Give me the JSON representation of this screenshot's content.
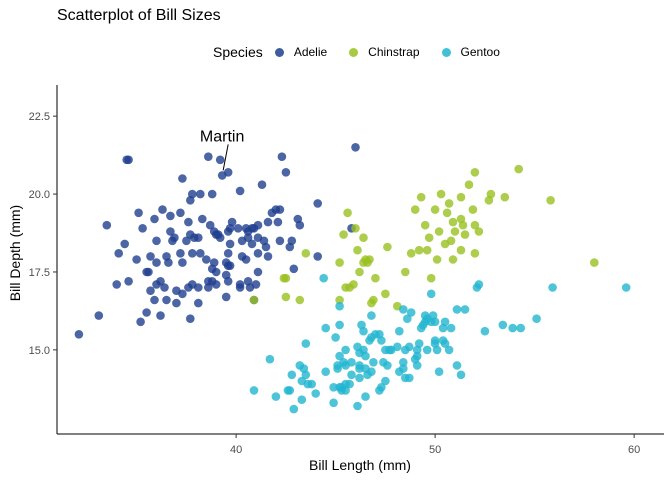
{
  "chart_data": {
    "type": "scatter",
    "title": "Scatterplot of Bill Sizes",
    "xlabel": "Bill Length (mm)",
    "ylabel": "Bill Depth (mm)",
    "xlim": [
      31.0,
      61.5
    ],
    "ylim": [
      12.3,
      23.5
    ],
    "xticks": [
      40,
      50,
      60
    ],
    "yticks": [
      15.0,
      17.5,
      20.0,
      22.5
    ],
    "ytick_labels": [
      "15.0",
      "17.5",
      "20.0",
      "22.5"
    ],
    "legend_title": "Species",
    "legend_position": "top",
    "annotation": {
      "text": "Martin",
      "x": 39.5,
      "y": 20.6
    },
    "series": [
      {
        "name": "Adelie",
        "color": "#1f3f8f",
        "points": [
          [
            32.1,
            15.5
          ],
          [
            33.1,
            16.1
          ],
          [
            33.5,
            19.0
          ],
          [
            34.0,
            17.1
          ],
          [
            34.1,
            18.1
          ],
          [
            34.4,
            18.4
          ],
          [
            34.5,
            21.1
          ],
          [
            34.6,
            17.2
          ],
          [
            34.6,
            21.1
          ],
          [
            35.0,
            17.9
          ],
          [
            35.1,
            19.4
          ],
          [
            35.2,
            15.9
          ],
          [
            35.3,
            18.9
          ],
          [
            35.5,
            16.2
          ],
          [
            35.5,
            17.5
          ],
          [
            35.6,
            17.5
          ],
          [
            35.7,
            16.9
          ],
          [
            35.7,
            18.0
          ],
          [
            35.9,
            16.6
          ],
          [
            35.9,
            19.2
          ],
          [
            36.0,
            17.1
          ],
          [
            36.0,
            17.8
          ],
          [
            36.0,
            18.5
          ],
          [
            36.2,
            16.1
          ],
          [
            36.2,
            17.2
          ],
          [
            36.3,
            19.5
          ],
          [
            36.4,
            17.0
          ],
          [
            36.5,
            16.6
          ],
          [
            36.5,
            18.0
          ],
          [
            36.6,
            17.8
          ],
          [
            36.7,
            18.8
          ],
          [
            36.7,
            19.3
          ],
          [
            36.8,
            18.5
          ],
          [
            36.9,
            18.6
          ],
          [
            37.0,
            16.5
          ],
          [
            37.0,
            16.9
          ],
          [
            37.2,
            18.1
          ],
          [
            37.2,
            19.4
          ],
          [
            37.3,
            16.8
          ],
          [
            37.3,
            17.8
          ],
          [
            37.3,
            20.5
          ],
          [
            37.5,
            18.5
          ],
          [
            37.6,
            17.0
          ],
          [
            37.6,
            19.1
          ],
          [
            37.7,
            16.0
          ],
          [
            37.7,
            18.7
          ],
          [
            37.7,
            19.8
          ],
          [
            37.8,
            17.1
          ],
          [
            37.8,
            18.1
          ],
          [
            37.8,
            20.0
          ],
          [
            37.9,
            18.6
          ],
          [
            38.1,
            16.5
          ],
          [
            38.1,
            17.0
          ],
          [
            38.1,
            18.6
          ],
          [
            38.2,
            18.1
          ],
          [
            38.2,
            20.0
          ],
          [
            38.3,
            19.2
          ],
          [
            38.5,
            17.9
          ],
          [
            38.6,
            17.0
          ],
          [
            38.6,
            17.2
          ],
          [
            38.6,
            21.2
          ],
          [
            38.7,
            19.0
          ],
          [
            38.8,
            17.2
          ],
          [
            38.8,
            17.6
          ],
          [
            38.8,
            20.0
          ],
          [
            38.9,
            17.8
          ],
          [
            38.9,
            18.8
          ],
          [
            39.0,
            17.1
          ],
          [
            39.0,
            17.5
          ],
          [
            39.0,
            18.7
          ],
          [
            39.1,
            18.7
          ],
          [
            39.2,
            18.6
          ],
          [
            39.2,
            21.1
          ],
          [
            39.3,
            20.6
          ],
          [
            39.5,
            16.7
          ],
          [
            39.5,
            17.4
          ],
          [
            39.5,
            17.8
          ],
          [
            39.6,
            17.2
          ],
          [
            39.6,
            17.7
          ],
          [
            39.6,
            18.1
          ],
          [
            39.6,
            18.8
          ],
          [
            39.6,
            20.7
          ],
          [
            39.7,
            17.7
          ],
          [
            39.7,
            18.4
          ],
          [
            39.7,
            18.9
          ],
          [
            39.8,
            19.1
          ],
          [
            40.1,
            18.9
          ],
          [
            40.2,
            17.0
          ],
          [
            40.2,
            17.1
          ],
          [
            40.2,
            20.1
          ],
          [
            40.3,
            18.0
          ],
          [
            40.3,
            18.5
          ],
          [
            40.5,
            17.9
          ],
          [
            40.5,
            18.9
          ],
          [
            40.6,
            17.2
          ],
          [
            40.6,
            18.6
          ],
          [
            40.6,
            18.8
          ],
          [
            40.7,
            17.0
          ],
          [
            40.8,
            18.4
          ],
          [
            40.8,
            18.9
          ],
          [
            40.9,
            16.6
          ],
          [
            40.9,
            18.9
          ],
          [
            41.0,
            17.1
          ],
          [
            41.1,
            17.5
          ],
          [
            41.1,
            18.1
          ],
          [
            41.1,
            18.6
          ],
          [
            41.1,
            19.0
          ],
          [
            41.3,
            20.3
          ],
          [
            41.4,
            18.5
          ],
          [
            41.5,
            18.3
          ],
          [
            41.6,
            18.0
          ],
          [
            41.6,
            19.1
          ],
          [
            41.8,
            19.4
          ],
          [
            42.0,
            19.5
          ],
          [
            42.1,
            19.1
          ],
          [
            42.2,
            18.5
          ],
          [
            42.2,
            19.5
          ],
          [
            42.3,
            21.2
          ],
          [
            42.5,
            20.7
          ],
          [
            42.7,
            18.3
          ],
          [
            42.8,
            18.5
          ],
          [
            42.9,
            17.6
          ],
          [
            43.1,
            19.2
          ],
          [
            43.2,
            19.0
          ],
          [
            44.1,
            18.0
          ],
          [
            44.1,
            19.7
          ],
          [
            45.8,
            18.9
          ],
          [
            46.0,
            21.5
          ]
        ]
      },
      {
        "name": "Chinstrap",
        "color": "#99c11f",
        "points": [
          [
            40.9,
            16.6
          ],
          [
            42.4,
            17.3
          ],
          [
            42.5,
            16.7
          ],
          [
            42.5,
            17.3
          ],
          [
            43.2,
            16.6
          ],
          [
            43.5,
            18.1
          ],
          [
            45.2,
            16.6
          ],
          [
            45.2,
            17.8
          ],
          [
            45.4,
            18.7
          ],
          [
            45.5,
            17.0
          ],
          [
            45.6,
            19.4
          ],
          [
            45.7,
            17.0
          ],
          [
            45.9,
            17.1
          ],
          [
            46.0,
            18.9
          ],
          [
            46.1,
            18.2
          ],
          [
            46.2,
            17.5
          ],
          [
            46.4,
            17.8
          ],
          [
            46.4,
            18.6
          ],
          [
            46.5,
            17.9
          ],
          [
            46.6,
            17.8
          ],
          [
            46.7,
            17.9
          ],
          [
            46.8,
            16.5
          ],
          [
            46.9,
            16.6
          ],
          [
            47.0,
            17.3
          ],
          [
            47.5,
            16.8
          ],
          [
            47.6,
            18.3
          ],
          [
            48.1,
            16.4
          ],
          [
            48.5,
            17.5
          ],
          [
            48.8,
            18.1
          ],
          [
            49.0,
            19.5
          ],
          [
            49.2,
            18.2
          ],
          [
            49.3,
            19.9
          ],
          [
            49.5,
            19.0
          ],
          [
            49.6,
            18.2
          ],
          [
            49.7,
            18.6
          ],
          [
            49.8,
            17.3
          ],
          [
            50.0,
            19.5
          ],
          [
            50.1,
            17.9
          ],
          [
            50.2,
            18.8
          ],
          [
            50.3,
            20.0
          ],
          [
            50.5,
            18.4
          ],
          [
            50.6,
            19.4
          ],
          [
            50.7,
            19.7
          ],
          [
            50.8,
            18.5
          ],
          [
            50.9,
            17.9
          ],
          [
            50.9,
            19.1
          ],
          [
            51.0,
            18.8
          ],
          [
            51.3,
            18.2
          ],
          [
            51.3,
            19.2
          ],
          [
            51.3,
            19.9
          ],
          [
            51.4,
            19.0
          ],
          [
            51.5,
            18.7
          ],
          [
            51.7,
            20.3
          ],
          [
            51.9,
            19.5
          ],
          [
            52.0,
            18.1
          ],
          [
            52.0,
            19.0
          ],
          [
            52.0,
            20.7
          ],
          [
            52.2,
            18.8
          ],
          [
            52.7,
            19.8
          ],
          [
            52.8,
            20.0
          ],
          [
            53.5,
            19.9
          ],
          [
            54.2,
            20.8
          ],
          [
            55.8,
            19.8
          ],
          [
            58.0,
            17.8
          ]
        ]
      },
      {
        "name": "Gentoo",
        "color": "#22b5cf",
        "points": [
          [
            40.9,
            13.7
          ],
          [
            41.7,
            14.7
          ],
          [
            42.0,
            13.5
          ],
          [
            42.6,
            13.7
          ],
          [
            42.7,
            13.7
          ],
          [
            42.8,
            14.2
          ],
          [
            42.9,
            13.1
          ],
          [
            43.2,
            14.5
          ],
          [
            43.3,
            13.4
          ],
          [
            43.3,
            14.0
          ],
          [
            43.4,
            14.4
          ],
          [
            43.5,
            14.2
          ],
          [
            43.5,
            15.2
          ],
          [
            43.6,
            13.9
          ],
          [
            43.8,
            13.9
          ],
          [
            44.0,
            13.6
          ],
          [
            44.4,
            17.3
          ],
          [
            44.5,
            14.3
          ],
          [
            44.5,
            15.7
          ],
          [
            44.9,
            13.3
          ],
          [
            44.9,
            13.8
          ],
          [
            45.0,
            15.4
          ],
          [
            45.1,
            14.4
          ],
          [
            45.1,
            14.5
          ],
          [
            45.2,
            13.8
          ],
          [
            45.2,
            14.8
          ],
          [
            45.2,
            15.8
          ],
          [
            45.2,
            16.4
          ],
          [
            45.3,
            13.7
          ],
          [
            45.3,
            13.8
          ],
          [
            45.4,
            14.6
          ],
          [
            45.5,
            13.7
          ],
          [
            45.5,
            13.9
          ],
          [
            45.5,
            14.5
          ],
          [
            45.5,
            15.0
          ],
          [
            45.7,
            13.9
          ],
          [
            45.8,
            14.2
          ],
          [
            45.8,
            14.6
          ],
          [
            46.1,
            13.2
          ],
          [
            46.1,
            15.1
          ],
          [
            46.2,
            14.1
          ],
          [
            46.2,
            14.4
          ],
          [
            46.2,
            14.5
          ],
          [
            46.2,
            14.9
          ],
          [
            46.3,
            15.8
          ],
          [
            46.4,
            15.0
          ],
          [
            46.4,
            15.6
          ],
          [
            46.5,
            13.5
          ],
          [
            46.5,
            14.4
          ],
          [
            46.5,
            14.8
          ],
          [
            46.6,
            14.2
          ],
          [
            46.7,
            15.3
          ],
          [
            46.8,
            14.3
          ],
          [
            46.8,
            15.4
          ],
          [
            46.8,
            16.1
          ],
          [
            46.9,
            14.6
          ],
          [
            47.0,
            15.5
          ],
          [
            47.2,
            13.7
          ],
          [
            47.2,
            15.5
          ],
          [
            47.3,
            13.8
          ],
          [
            47.3,
            15.3
          ],
          [
            47.4,
            14.6
          ],
          [
            47.5,
            14.0
          ],
          [
            47.5,
            15.0
          ],
          [
            47.6,
            14.5
          ],
          [
            47.7,
            15.0
          ],
          [
            47.8,
            15.0
          ],
          [
            48.1,
            15.1
          ],
          [
            48.2,
            14.3
          ],
          [
            48.2,
            15.6
          ],
          [
            48.4,
            14.4
          ],
          [
            48.4,
            14.6
          ],
          [
            48.4,
            16.3
          ],
          [
            48.5,
            14.1
          ],
          [
            48.5,
            15.0
          ],
          [
            48.6,
            16.0
          ],
          [
            48.7,
            14.1
          ],
          [
            48.7,
            15.1
          ],
          [
            48.8,
            16.2
          ],
          [
            49.0,
            14.7
          ],
          [
            49.1,
            14.5
          ],
          [
            49.1,
            14.8
          ],
          [
            49.1,
            15.0
          ],
          [
            49.2,
            15.2
          ],
          [
            49.3,
            15.7
          ],
          [
            49.4,
            15.8
          ],
          [
            49.5,
            15.9
          ],
          [
            49.5,
            16.1
          ],
          [
            49.6,
            15.0
          ],
          [
            49.6,
            16.0
          ],
          [
            49.8,
            15.9
          ],
          [
            49.8,
            16.8
          ],
          [
            49.9,
            16.1
          ],
          [
            50.0,
            15.2
          ],
          [
            50.0,
            15.3
          ],
          [
            50.0,
            15.9
          ],
          [
            50.1,
            15.0
          ],
          [
            50.2,
            14.3
          ],
          [
            50.4,
            15.3
          ],
          [
            50.4,
            15.7
          ],
          [
            50.5,
            15.2
          ],
          [
            50.5,
            15.9
          ],
          [
            50.7,
            15.0
          ],
          [
            50.8,
            15.7
          ],
          [
            51.1,
            14.5
          ],
          [
            51.1,
            16.3
          ],
          [
            51.3,
            14.2
          ],
          [
            51.5,
            16.3
          ],
          [
            52.1,
            17.0
          ],
          [
            52.2,
            17.1
          ],
          [
            52.5,
            15.6
          ],
          [
            53.4,
            15.8
          ],
          [
            53.9,
            15.7
          ],
          [
            54.3,
            15.7
          ],
          [
            55.1,
            16.0
          ],
          [
            55.9,
            17.0
          ],
          [
            59.6,
            17.0
          ]
        ]
      }
    ]
  }
}
